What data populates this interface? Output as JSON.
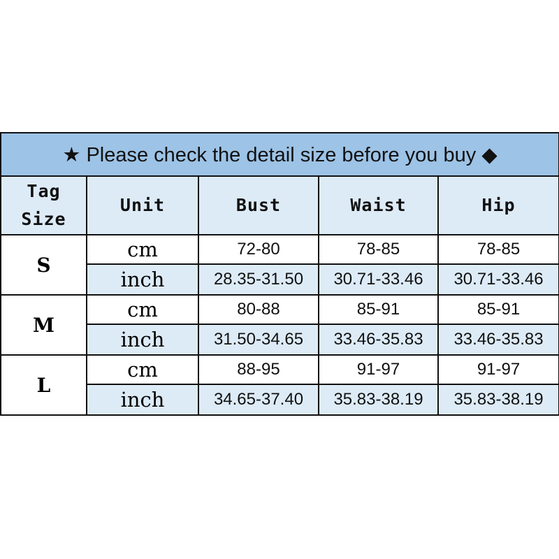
{
  "title": {
    "star_icon": "★",
    "text": "Please check the detail size before you buy",
    "diamond_icon": "◆"
  },
  "colors": {
    "title_bg": "#9dc3e6",
    "header_bg": "#ddebf7",
    "border": "#111111"
  },
  "headers": {
    "tag_line1": "Tag",
    "tag_line2": "Size",
    "unit": "Unit",
    "bust": "Bust",
    "waist": "Waist",
    "hip": "Hip"
  },
  "rows": [
    {
      "size": "S",
      "cm": {
        "unit": "cm",
        "bust": "72-80",
        "waist": "78-85",
        "hip": "78-85"
      },
      "inch": {
        "unit": "inch",
        "bust": "28.35-31.50",
        "waist": "30.71-33.46",
        "hip": "30.71-33.46"
      }
    },
    {
      "size": "M",
      "cm": {
        "unit": "cm",
        "bust": "80-88",
        "waist": "85-91",
        "hip": "85-91"
      },
      "inch": {
        "unit": "inch",
        "bust": "31.50-34.65",
        "waist": "33.46-35.83",
        "hip": "33.46-35.83"
      }
    },
    {
      "size": "L",
      "cm": {
        "unit": "cm",
        "bust": "88-95",
        "waist": "91-97",
        "hip": "91-97"
      },
      "inch": {
        "unit": "inch",
        "bust": "34.65-37.40",
        "waist": "35.83-38.19",
        "hip": "35.83-38.19"
      }
    }
  ]
}
